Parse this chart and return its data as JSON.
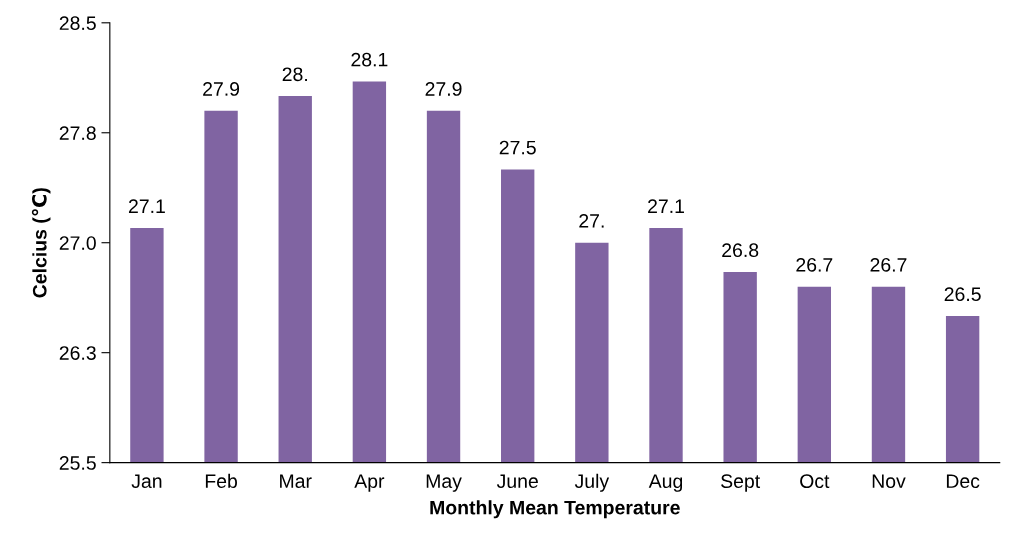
{
  "chart_data": {
    "type": "bar",
    "xlabel": "Monthly Mean Temperature",
    "ylabel": "Celcius (℃)",
    "categories": [
      "Jan",
      "Feb",
      "Mar",
      "Apr",
      "May",
      "June",
      "July",
      "Aug",
      "Sept",
      "Oct",
      "Nov",
      "Dec"
    ],
    "values": [
      27.1,
      27.9,
      28.0,
      28.1,
      27.9,
      27.5,
      27.0,
      27.1,
      26.8,
      26.7,
      26.7,
      26.5
    ],
    "value_labels": [
      "27.1",
      "27.9",
      "28.",
      "28.1",
      "27.9",
      "27.5",
      "27.",
      "27.1",
      "26.8",
      "26.7",
      "26.7",
      "26.5"
    ],
    "color": "#8064a2",
    "ylim": [
      25.5,
      28.5
    ],
    "yticks": [
      25.5,
      {
        "value": 26.25,
        "label": "26.3"
      },
      {
        "value": 27.0,
        "label": "27.0"
      },
      {
        "value": 27.75,
        "label": "27.8"
      },
      28.5
    ],
    "grid": false
  }
}
